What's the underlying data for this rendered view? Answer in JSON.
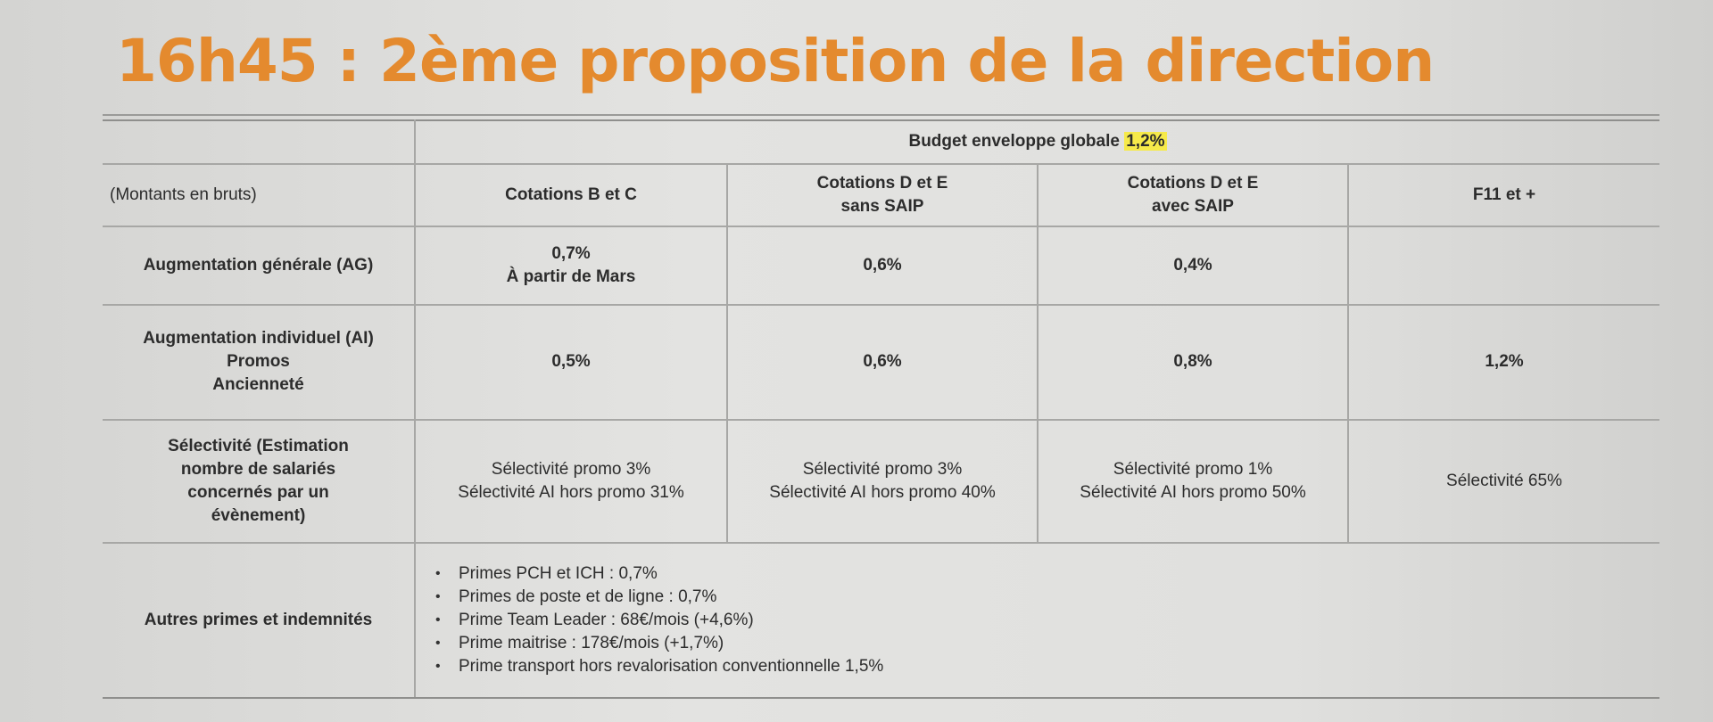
{
  "title": "16h45 : 2ème proposition de la direction",
  "table": {
    "budget_label": "Budget enveloppe globale",
    "budget_value": "1,2%",
    "corner_label": "(Montants en bruts)",
    "columns": [
      [
        "Cotations B et C"
      ],
      [
        "Cotations D et E",
        "sans SAIP"
      ],
      [
        "Cotations D et E",
        "avec SAIP"
      ],
      [
        "F11 et +"
      ]
    ],
    "rows": {
      "ag": {
        "label": "Augmentation générale (AG)",
        "cells": [
          [
            "0,7%",
            "À partir de Mars"
          ],
          [
            "0,6%"
          ],
          [
            "0,4%"
          ],
          []
        ]
      },
      "ai": {
        "label": [
          "Augmentation individuel (AI)",
          "Promos",
          "Ancienneté"
        ],
        "cells": [
          [
            "0,5%"
          ],
          [
            "0,6%"
          ],
          [
            "0,8%"
          ],
          [
            "1,2%"
          ]
        ]
      },
      "selectivite": {
        "label": [
          "Sélectivité (Estimation",
          "nombre de salariés",
          "concernés par un",
          "évènement)"
        ],
        "cells": [
          [
            "Sélectivité promo 3%",
            "Sélectivité AI hors promo 31%"
          ],
          [
            "Sélectivité promo 3%",
            "Sélectivité AI hors promo 40%"
          ],
          [
            "Sélectivité promo 1%",
            "Sélectivité AI hors promo 50%"
          ],
          [
            "Sélectivité 65%"
          ]
        ]
      },
      "primes": {
        "label": "Autres primes et indemnités",
        "items": [
          "Primes PCH et ICH : 0,7%",
          "Primes de poste et de ligne : 0,7%",
          "Prime Team Leader : 68€/mois (+4,6%)",
          "Prime maitrise : 178€/mois (+1,7%)",
          "Prime transport hors revalorisation conventionnelle 1,5%"
        ]
      }
    }
  }
}
